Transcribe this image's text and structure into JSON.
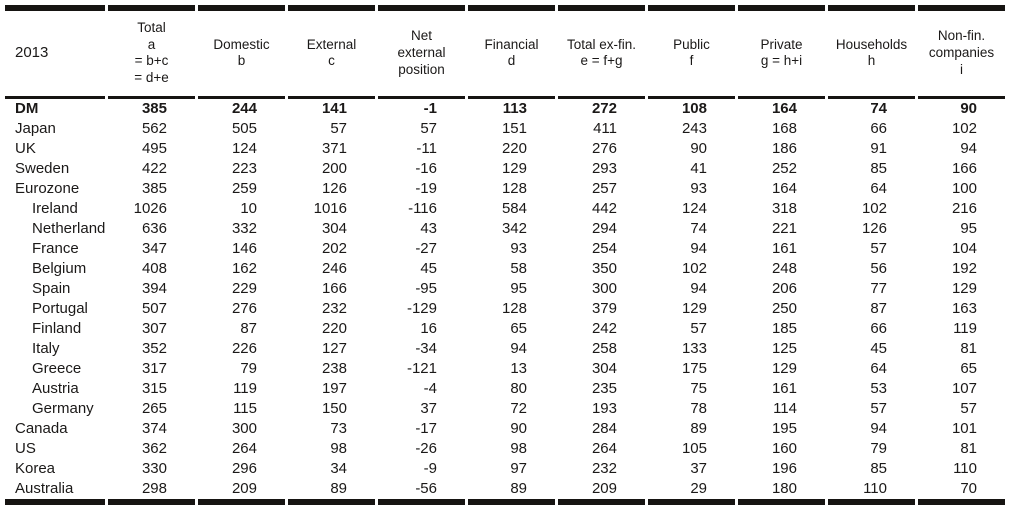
{
  "page": {
    "background_color": "#ffffff",
    "text_color": "#1b1918",
    "rule_color": "#161412"
  },
  "table": {
    "year_label": "2013",
    "columns": [
      {
        "id": "total",
        "label": "Total\na\n= b+c\n= d+e"
      },
      {
        "id": "domestic",
        "label": "Domestic\nb"
      },
      {
        "id": "external",
        "label": "External\nc"
      },
      {
        "id": "net-external-position",
        "label": "Net\nexternal\nposition"
      },
      {
        "id": "financial",
        "label": "Financial\nd"
      },
      {
        "id": "total-ex-fin",
        "label": "Total ex-fin.\ne = f+g"
      },
      {
        "id": "public",
        "label": "Public\nf"
      },
      {
        "id": "private",
        "label": "Private\ng = h+i"
      },
      {
        "id": "households",
        "label": "Households\nh"
      },
      {
        "id": "nonfin-companies",
        "label": "Non-fin.\ncompanies\ni"
      }
    ],
    "rows": [
      {
        "label": "DM",
        "bold": true,
        "indent": false,
        "values": [
          385,
          244,
          141,
          -1,
          113,
          272,
          108,
          164,
          74,
          90
        ]
      },
      {
        "label": "Japan",
        "bold": false,
        "indent": false,
        "values": [
          562,
          505,
          57,
          57,
          151,
          411,
          243,
          168,
          66,
          102
        ]
      },
      {
        "label": "UK",
        "bold": false,
        "indent": false,
        "values": [
          495,
          124,
          371,
          -11,
          220,
          276,
          90,
          186,
          91,
          94
        ]
      },
      {
        "label": "Sweden",
        "bold": false,
        "indent": false,
        "values": [
          422,
          223,
          200,
          -16,
          129,
          293,
          41,
          252,
          85,
          166
        ]
      },
      {
        "label": "Eurozone",
        "bold": false,
        "indent": false,
        "values": [
          385,
          259,
          126,
          -19,
          128,
          257,
          93,
          164,
          64,
          100
        ]
      },
      {
        "label": "Ireland",
        "bold": false,
        "indent": true,
        "values": [
          1026,
          10,
          1016,
          -116,
          584,
          442,
          124,
          318,
          102,
          216
        ]
      },
      {
        "label": "Netherlands",
        "bold": false,
        "indent": true,
        "values": [
          636,
          332,
          304,
          43,
          342,
          294,
          74,
          221,
          126,
          95
        ]
      },
      {
        "label": "France",
        "bold": false,
        "indent": true,
        "values": [
          347,
          146,
          202,
          -27,
          93,
          254,
          94,
          161,
          57,
          104
        ]
      },
      {
        "label": "Belgium",
        "bold": false,
        "indent": true,
        "values": [
          408,
          162,
          246,
          45,
          58,
          350,
          102,
          248,
          56,
          192
        ]
      },
      {
        "label": "Spain",
        "bold": false,
        "indent": true,
        "values": [
          394,
          229,
          166,
          -95,
          95,
          300,
          94,
          206,
          77,
          129
        ]
      },
      {
        "label": "Portugal",
        "bold": false,
        "indent": true,
        "values": [
          507,
          276,
          232,
          -129,
          128,
          379,
          129,
          250,
          87,
          163
        ]
      },
      {
        "label": "Finland",
        "bold": false,
        "indent": true,
        "values": [
          307,
          87,
          220,
          16,
          65,
          242,
          57,
          185,
          66,
          119
        ]
      },
      {
        "label": "Italy",
        "bold": false,
        "indent": true,
        "values": [
          352,
          226,
          127,
          -34,
          94,
          258,
          133,
          125,
          45,
          81
        ]
      },
      {
        "label": "Greece",
        "bold": false,
        "indent": true,
        "values": [
          317,
          79,
          238,
          -121,
          13,
          304,
          175,
          129,
          64,
          65
        ]
      },
      {
        "label": "Austria",
        "bold": false,
        "indent": true,
        "values": [
          315,
          119,
          197,
          -4,
          80,
          235,
          75,
          161,
          53,
          107
        ]
      },
      {
        "label": "Germany",
        "bold": false,
        "indent": true,
        "values": [
          265,
          115,
          150,
          37,
          72,
          193,
          78,
          114,
          57,
          57
        ]
      },
      {
        "label": "Canada",
        "bold": false,
        "indent": false,
        "values": [
          374,
          300,
          73,
          -17,
          90,
          284,
          89,
          195,
          94,
          101
        ]
      },
      {
        "label": "US",
        "bold": false,
        "indent": false,
        "values": [
          362,
          264,
          98,
          -26,
          98,
          264,
          105,
          160,
          79,
          81
        ]
      },
      {
        "label": "Korea",
        "bold": false,
        "indent": false,
        "values": [
          330,
          296,
          34,
          -9,
          97,
          232,
          37,
          196,
          85,
          110
        ]
      },
      {
        "label": "Australia",
        "bold": false,
        "indent": false,
        "values": [
          298,
          209,
          89,
          -56,
          89,
          209,
          29,
          180,
          110,
          70
        ]
      }
    ]
  }
}
